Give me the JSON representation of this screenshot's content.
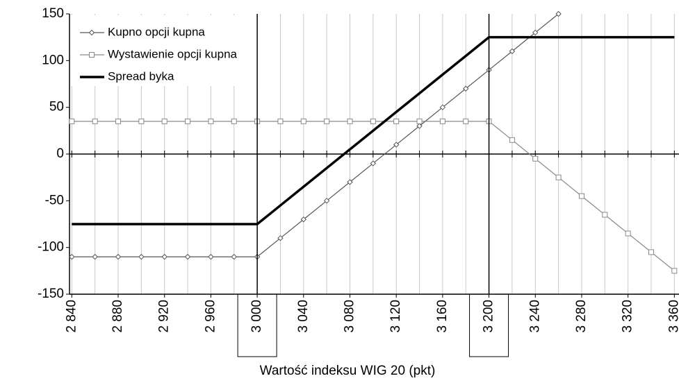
{
  "chart_data": {
    "type": "line",
    "x_label": "Wartość indeksu WIG 20 (pkt)",
    "x": [
      2840,
      2860,
      2880,
      2900,
      2920,
      2940,
      2960,
      2980,
      3000,
      3020,
      3040,
      3060,
      3080,
      3100,
      3120,
      3140,
      3160,
      3180,
      3200,
      3220,
      3240,
      3260,
      3280,
      3300,
      3320,
      3340,
      3360
    ],
    "series": [
      {
        "name": "Kupno opcji kupna",
        "color": "#555555",
        "marker": "diamond",
        "values": [
          -110,
          -110,
          -110,
          -110,
          -110,
          -110,
          -110,
          -110,
          -110,
          -90,
          -70,
          -50,
          -30,
          -10,
          10,
          30,
          50,
          70,
          90,
          110,
          130,
          150,
          null,
          null,
          null,
          null,
          null
        ]
      },
      {
        "name": "Wystawienie opcji kupna",
        "color": "#888888",
        "marker": "square",
        "values": [
          35,
          35,
          35,
          35,
          35,
          35,
          35,
          35,
          35,
          35,
          35,
          35,
          35,
          35,
          35,
          35,
          35,
          35,
          35,
          15,
          -5,
          -25,
          -45,
          -65,
          -85,
          -105,
          -125
        ]
      },
      {
        "name": "Spread byka",
        "color": "#000000",
        "marker": "none",
        "values": [
          -75,
          -75,
          -75,
          -75,
          -75,
          -75,
          -75,
          -75,
          -75,
          -55,
          -35,
          -15,
          5,
          25,
          45,
          65,
          85,
          105,
          125,
          125,
          125,
          125,
          125,
          125,
          125,
          125,
          125
        ]
      }
    ],
    "xlim": [
      2838,
      3364
    ],
    "xticks": [
      {
        "value": 2840,
        "label": "2 840"
      },
      {
        "value": 2880,
        "label": "2 880"
      },
      {
        "value": 2920,
        "label": "2 920"
      },
      {
        "value": 2960,
        "label": "2 960"
      },
      {
        "value": 3000,
        "label": "3 000"
      },
      {
        "value": 3040,
        "label": "3 040"
      },
      {
        "value": 3080,
        "label": "3 080"
      },
      {
        "value": 3120,
        "label": "3 120"
      },
      {
        "value": 3160,
        "label": "3 160"
      },
      {
        "value": 3200,
        "label": "3 200"
      },
      {
        "value": 3240,
        "label": "3 240"
      },
      {
        "value": 3280,
        "label": "3 280"
      },
      {
        "value": 3320,
        "label": "3 320"
      },
      {
        "value": 3360,
        "label": "3 360"
      }
    ],
    "ylim": [
      -150,
      150
    ],
    "yticks": [
      -150,
      -100,
      -50,
      0,
      50,
      100,
      150
    ],
    "strike_lines": [
      3000,
      3200
    ],
    "grid": true,
    "legend": "top-left"
  }
}
